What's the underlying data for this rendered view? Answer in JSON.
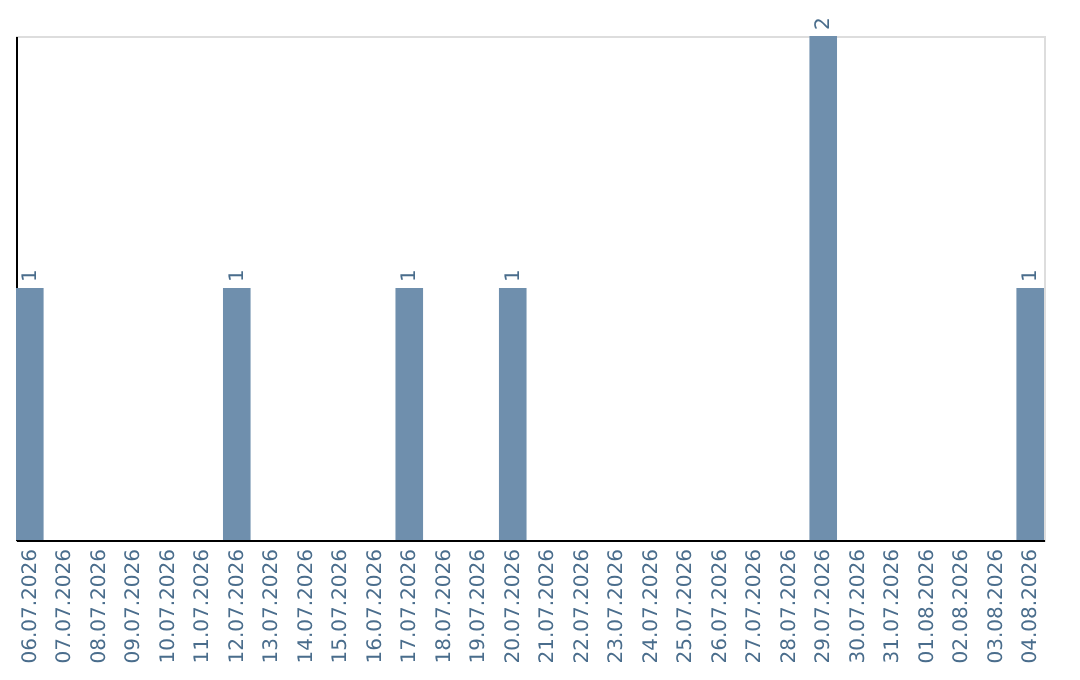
{
  "chart_data": {
    "type": "bar",
    "categories": [
      "06.07.2026",
      "07.07.2026",
      "08.07.2026",
      "09.07.2026",
      "10.07.2026",
      "11.07.2026",
      "12.07.2026",
      "13.07.2026",
      "14.07.2026",
      "15.07.2026",
      "16.07.2026",
      "17.07.2026",
      "18.07.2026",
      "19.07.2026",
      "20.07.2026",
      "21.07.2026",
      "22.07.2026",
      "23.07.2026",
      "24.07.2026",
      "25.07.2026",
      "26.07.2026",
      "27.07.2026",
      "28.07.2026",
      "29.07.2026",
      "30.07.2026",
      "31.07.2026",
      "01.08.2026",
      "02.08.2026",
      "03.08.2026",
      "04.08.2026"
    ],
    "values": [
      1,
      0,
      0,
      0,
      0,
      0,
      1,
      0,
      0,
      0,
      0,
      1,
      0,
      0,
      1,
      0,
      0,
      0,
      0,
      0,
      0,
      0,
      0,
      2,
      0,
      0,
      0,
      0,
      0,
      1
    ],
    "value_labels": [
      "1",
      null,
      null,
      null,
      null,
      null,
      "1",
      null,
      null,
      null,
      null,
      "1",
      null,
      null,
      "1",
      null,
      null,
      null,
      null,
      null,
      null,
      null,
      null,
      "2",
      null,
      null,
      null,
      null,
      null,
      "1"
    ],
    "color": "#6f8fad",
    "grid": false,
    "tick_labels": "x"
  }
}
